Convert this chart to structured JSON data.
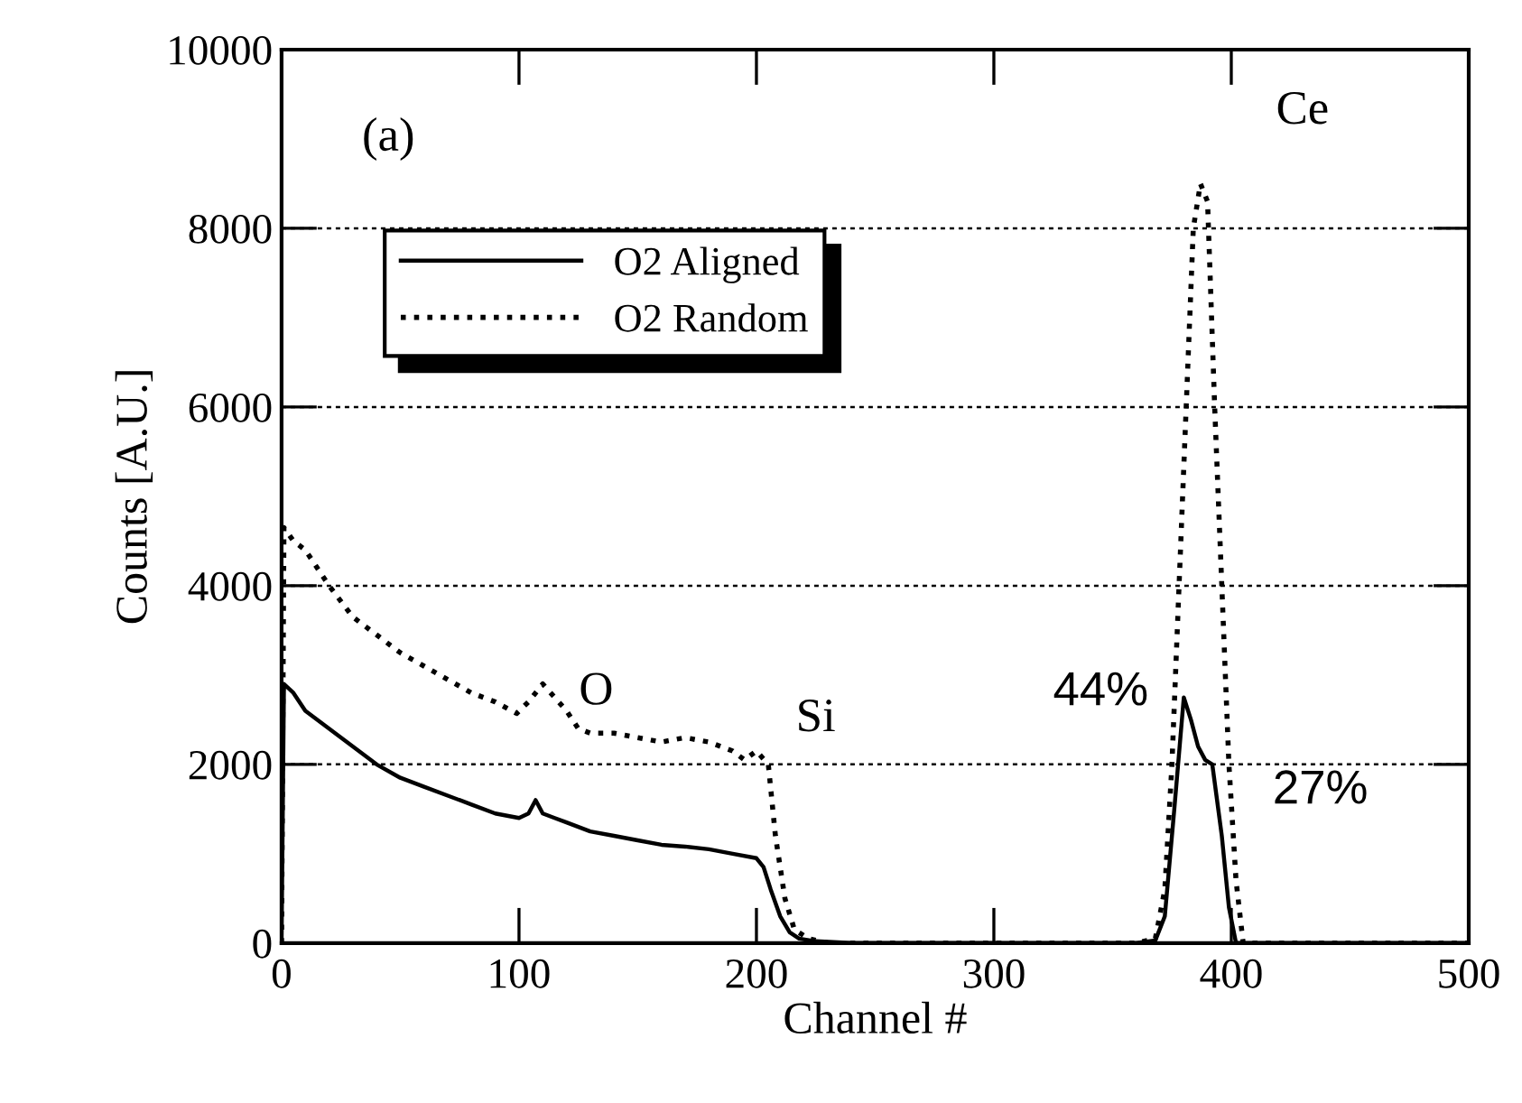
{
  "chart_data": {
    "type": "line",
    "xlabel": "Channel #",
    "ylabel": "Counts [A.U.]",
    "xlim": [
      0,
      500
    ],
    "ylim": [
      0,
      10000
    ],
    "xticks": [
      0,
      100,
      200,
      300,
      400,
      500
    ],
    "yticks": [
      0,
      2000,
      4000,
      6000,
      8000,
      10000
    ],
    "grid": "y",
    "legend": "top left",
    "marker": "none",
    "series": [
      {
        "name": "O2 Aligned",
        "color": "#000000",
        "line_style": "solid",
        "x": [
          0,
          1,
          5,
          10,
          20,
          30,
          40,
          50,
          60,
          70,
          80,
          90,
          100,
          104,
          107,
          110,
          115,
          120,
          130,
          140,
          150,
          160,
          170,
          180,
          190,
          200,
          203,
          206,
          210,
          214,
          218,
          225,
          240,
          300,
          360,
          368,
          372,
          376,
          380,
          383,
          386,
          389,
          392,
          396,
          399,
          402,
          420,
          500
        ],
        "values": [
          0,
          2900,
          2800,
          2600,
          2400,
          2200,
          2000,
          1850,
          1750,
          1650,
          1550,
          1450,
          1400,
          1450,
          1600,
          1450,
          1400,
          1350,
          1250,
          1200,
          1150,
          1100,
          1080,
          1050,
          1000,
          950,
          850,
          600,
          300,
          120,
          50,
          20,
          0,
          0,
          0,
          30,
          300,
          1500,
          2750,
          2500,
          2200,
          2050,
          2000,
          1200,
          400,
          0,
          0,
          0
        ]
      },
      {
        "name": "O2 Random",
        "color": "#000000",
        "line_style": "dotted",
        "x": [
          0,
          1,
          5,
          10,
          20,
          30,
          40,
          50,
          60,
          70,
          80,
          90,
          99,
          104,
          110,
          115,
          120,
          125,
          130,
          140,
          150,
          160,
          170,
          180,
          190,
          195,
          200,
          205,
          208,
          212,
          216,
          222,
          230,
          300,
          360,
          368,
          372,
          375,
          378,
          381,
          384,
          387,
          390,
          393,
          396,
          399,
          402,
          405,
          420,
          500
        ],
        "values": [
          0,
          4650,
          4500,
          4400,
          4000,
          3650,
          3450,
          3250,
          3100,
          2950,
          2800,
          2700,
          2570,
          2700,
          2900,
          2750,
          2600,
          2400,
          2350,
          2350,
          2300,
          2250,
          2300,
          2250,
          2150,
          2050,
          2150,
          2000,
          1200,
          500,
          150,
          50,
          0,
          0,
          0,
          50,
          600,
          2000,
          4000,
          6000,
          8000,
          8500,
          8300,
          6000,
          4000,
          2000,
          700,
          0,
          0,
          0
        ]
      }
    ],
    "annotations": [
      "(a)",
      "O",
      "Si",
      "Ce",
      "44%",
      "27%"
    ]
  }
}
